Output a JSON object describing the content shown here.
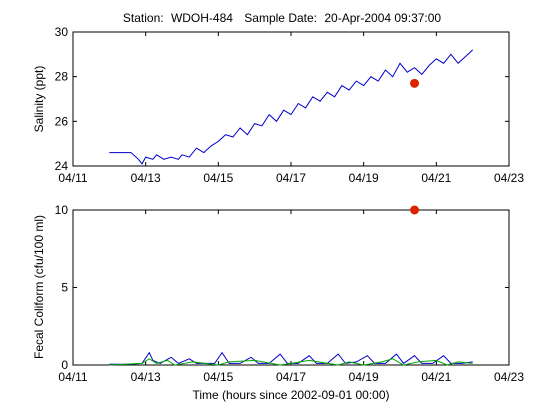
{
  "title": {
    "station_label": "Station:",
    "station_id": "WDOH-484",
    "sample_label": "Sample Date:",
    "sample_date": "20-Apr-2004 09:37:00"
  },
  "colors": {
    "salinity_line": "#0000cc",
    "fecal_line_blue": "#0000cc",
    "fecal_line_green": "#00aa00",
    "sample_marker": "#dd2200"
  },
  "chart_data": [
    {
      "type": "line",
      "xlabel": "",
      "ylabel": "Salinity (ppt)",
      "xlim": [
        "04/11",
        "04/23"
      ],
      "xlim_days": [
        11,
        23
      ],
      "ylim": [
        24,
        30
      ],
      "xticks": [
        "04/11",
        "04/13",
        "04/15",
        "04/17",
        "04/19",
        "04/21",
        "04/23"
      ],
      "xtick_days": [
        11,
        13,
        15,
        17,
        19,
        21,
        23
      ],
      "yticks": [
        24,
        26,
        28,
        30
      ],
      "grid": false,
      "series": [
        {
          "type": "line",
          "x_days": [
            12.0,
            12.3,
            12.6,
            12.8,
            12.9,
            13.0,
            13.2,
            13.3,
            13.5,
            13.7,
            13.9,
            14.0,
            14.2,
            14.4,
            14.6,
            14.8,
            15.0,
            15.2,
            15.4,
            15.6,
            15.8,
            16.0,
            16.2,
            16.4,
            16.6,
            16.8,
            17.0,
            17.2,
            17.4,
            17.6,
            17.8,
            18.0,
            18.2,
            18.4,
            18.6,
            18.8,
            19.0,
            19.2,
            19.4,
            19.6,
            19.8,
            20.0,
            20.2,
            20.4,
            20.6,
            20.8,
            21.0,
            21.2,
            21.4,
            21.6,
            21.8,
            22.0
          ],
          "values": [
            24.6,
            24.6,
            24.6,
            24.3,
            24.1,
            24.4,
            24.3,
            24.5,
            24.3,
            24.4,
            24.3,
            24.5,
            24.4,
            24.8,
            24.6,
            24.9,
            25.1,
            25.4,
            25.3,
            25.7,
            25.4,
            25.9,
            25.8,
            26.3,
            26.0,
            26.5,
            26.3,
            26.8,
            26.6,
            27.1,
            26.9,
            27.3,
            27.1,
            27.6,
            27.4,
            27.8,
            27.6,
            28.0,
            27.8,
            28.3,
            28.0,
            28.6,
            28.2,
            28.4,
            28.1,
            28.5,
            28.8,
            28.6,
            29.0,
            28.6,
            28.9,
            29.2
          ]
        },
        {
          "type": "scatter",
          "x_days": [
            20.4
          ],
          "values": [
            27.7
          ]
        }
      ]
    },
    {
      "type": "line",
      "xlabel": "Time (hours since 2002-09-01 00:00)",
      "ylabel": "Fecal Coliform (cfu/100 ml)",
      "xlim": [
        "04/11",
        "04/23"
      ],
      "xlim_days": [
        11,
        23
      ],
      "ylim": [
        0,
        10
      ],
      "xticks": [
        "04/11",
        "04/13",
        "04/15",
        "04/17",
        "04/19",
        "04/21",
        "04/23"
      ],
      "xtick_days": [
        11,
        13,
        15,
        17,
        19,
        21,
        23
      ],
      "yticks": [
        0,
        5,
        10
      ],
      "grid": false,
      "series": [
        {
          "type": "line",
          "x_days": [
            12.0,
            12.5,
            12.9,
            13.1,
            13.2,
            13.4,
            13.7,
            13.9,
            14.2,
            14.4,
            14.6,
            14.9,
            15.1,
            15.3,
            15.6,
            15.9,
            16.1,
            16.4,
            16.7,
            16.9,
            17.2,
            17.5,
            17.7,
            18.0,
            18.3,
            18.5,
            18.8,
            19.1,
            19.3,
            19.6,
            19.9,
            20.1,
            20.4,
            20.6,
            20.9,
            21.2,
            21.4,
            21.7,
            22.0
          ],
          "values": [
            0.05,
            0.05,
            0.1,
            0.8,
            0.3,
            0.1,
            0.5,
            0.1,
            0.4,
            0.1,
            0.1,
            0.1,
            0.8,
            0.1,
            0.1,
            0.5,
            0.1,
            0.1,
            0.7,
            0.1,
            0.1,
            0.6,
            0.1,
            0.1,
            0.7,
            0.1,
            0.2,
            0.6,
            0.1,
            0.1,
            0.7,
            0.1,
            0.6,
            0.1,
            0.1,
            0.6,
            0.1,
            0.1,
            0.2
          ]
        },
        {
          "type": "line",
          "x_days": [
            12.0,
            12.9,
            13.1,
            13.3,
            13.6,
            13.8,
            14.3,
            15.0,
            15.3,
            16.0,
            16.7,
            17.0,
            17.5,
            18.3,
            18.6,
            19.0,
            19.5,
            19.8,
            20.1,
            20.5,
            21.0,
            21.3,
            21.6,
            22.0
          ],
          "values": [
            0.0,
            0.1,
            0.4,
            0.1,
            0.3,
            0.0,
            0.2,
            0.0,
            0.2,
            0.3,
            0.0,
            0.1,
            0.3,
            0.0,
            0.2,
            0.0,
            0.2,
            0.4,
            0.0,
            0.2,
            0.3,
            0.0,
            0.2,
            0.1
          ]
        },
        {
          "type": "scatter",
          "x_days": [
            20.4
          ],
          "values": [
            10
          ]
        }
      ]
    }
  ]
}
